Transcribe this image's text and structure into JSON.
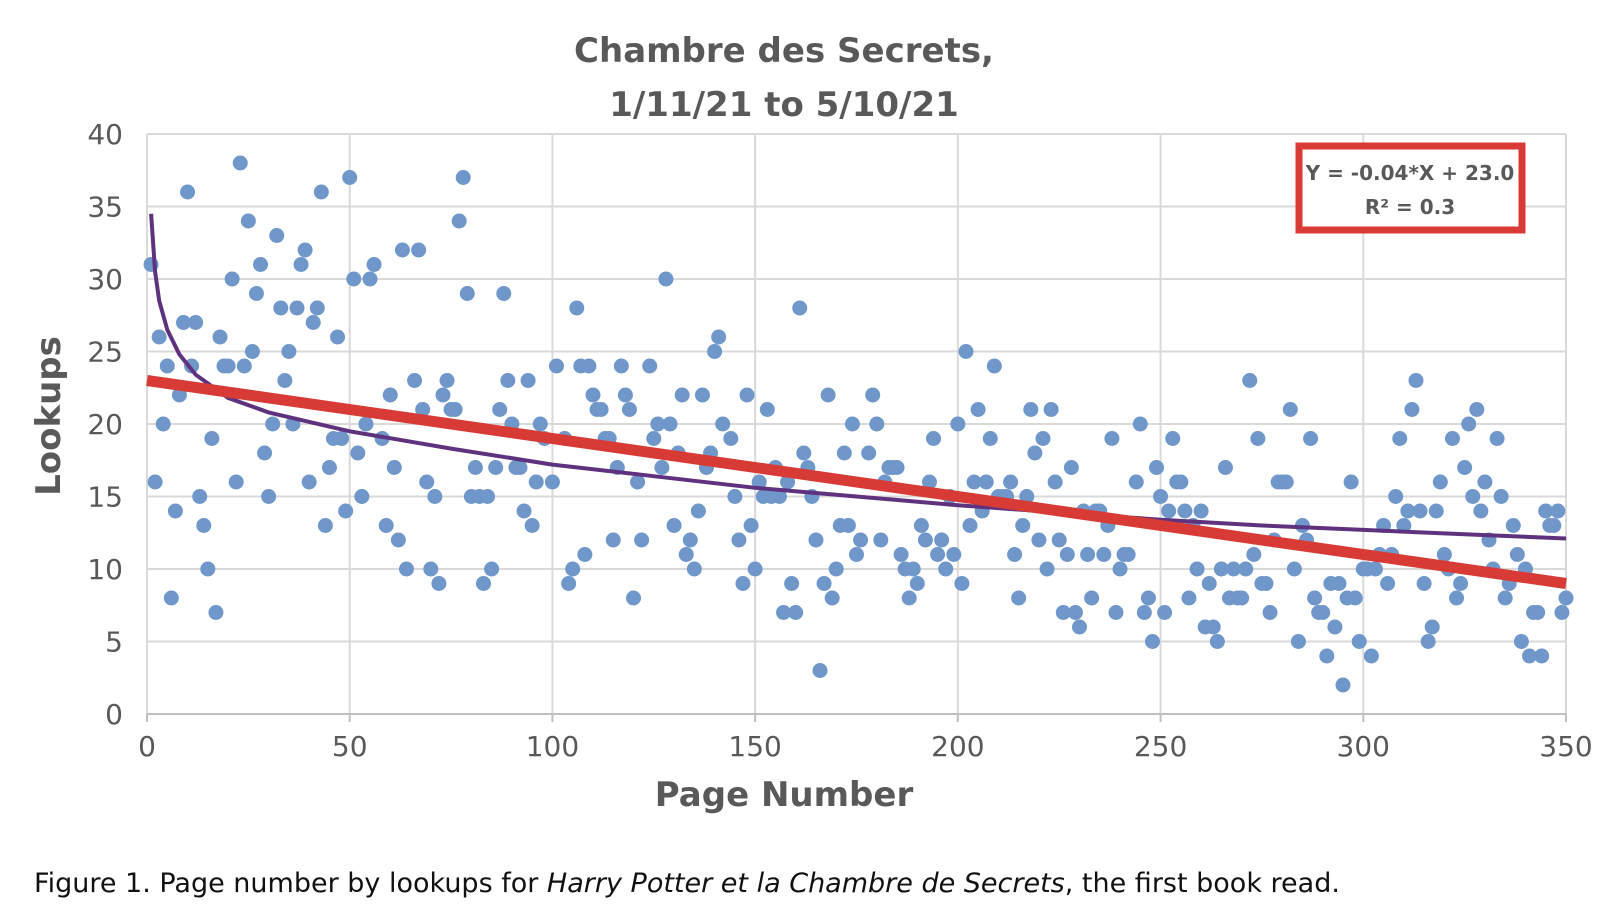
{
  "chart_data": {
    "type": "scatter",
    "title": [
      "Chambre des Secrets,",
      "1/11/21 to 5/10/21"
    ],
    "xlabel": "Page Number",
    "ylabel": "Lookups",
    "xlim": [
      0,
      350
    ],
    "ylim": [
      0,
      40
    ],
    "xticks": [
      0,
      50,
      100,
      150,
      200,
      250,
      300,
      350
    ],
    "yticks": [
      0,
      5,
      10,
      15,
      20,
      25,
      30,
      35,
      40
    ],
    "grid": true,
    "points_color": "#6f97c9",
    "linear_fit_color": "#d83b36",
    "log_fit_color": "#5f327f",
    "annotation": {
      "line1": "Y = -0.04*X + 23.0",
      "line2": "R² = 0.3",
      "border_color": "#d83b36"
    },
    "linear_fit": {
      "slope": -0.04,
      "intercept": 23.0
    },
    "log_fit": {
      "points": [
        [
          1,
          34.5
        ],
        [
          2,
          30.5
        ],
        [
          3,
          28.5
        ],
        [
          5,
          26.5
        ],
        [
          8,
          24.8
        ],
        [
          12,
          23.4
        ],
        [
          20,
          21.8
        ],
        [
          30,
          20.8
        ],
        [
          50,
          19.5
        ],
        [
          75,
          18.3
        ],
        [
          100,
          17.2
        ],
        [
          125,
          16.4
        ],
        [
          150,
          15.6
        ],
        [
          175,
          15.0
        ],
        [
          200,
          14.4
        ],
        [
          225,
          13.9
        ],
        [
          250,
          13.4
        ],
        [
          275,
          13.0
        ],
        [
          300,
          12.7
        ],
        [
          325,
          12.4
        ],
        [
          350,
          12.1
        ]
      ]
    },
    "points": [
      [
        1,
        31
      ],
      [
        2,
        16
      ],
      [
        3,
        26
      ],
      [
        4,
        20
      ],
      [
        5,
        24
      ],
      [
        6,
        8
      ],
      [
        7,
        14
      ],
      [
        8,
        22
      ],
      [
        9,
        27
      ],
      [
        10,
        36
      ],
      [
        11,
        24
      ],
      [
        12,
        27
      ],
      [
        13,
        15
      ],
      [
        14,
        13
      ],
      [
        15,
        10
      ],
      [
        16,
        19
      ],
      [
        17,
        7
      ],
      [
        18,
        26
      ],
      [
        19,
        24
      ],
      [
        20,
        24
      ],
      [
        21,
        30
      ],
      [
        22,
        16
      ],
      [
        23,
        38
      ],
      [
        24,
        24
      ],
      [
        25,
        34
      ],
      [
        26,
        25
      ],
      [
        27,
        29
      ],
      [
        28,
        31
      ],
      [
        29,
        18
      ],
      [
        30,
        15
      ],
      [
        31,
        20
      ],
      [
        32,
        33
      ],
      [
        33,
        28
      ],
      [
        34,
        23
      ],
      [
        35,
        25
      ],
      [
        36,
        20
      ],
      [
        37,
        28
      ],
      [
        38,
        31
      ],
      [
        39,
        32
      ],
      [
        40,
        16
      ],
      [
        41,
        27
      ],
      [
        42,
        28
      ],
      [
        43,
        36
      ],
      [
        44,
        13
      ],
      [
        45,
        17
      ],
      [
        46,
        19
      ],
      [
        47,
        26
      ],
      [
        48,
        19
      ],
      [
        49,
        14
      ],
      [
        50,
        37
      ],
      [
        51,
        30
      ],
      [
        52,
        18
      ],
      [
        53,
        15
      ],
      [
        54,
        20
      ],
      [
        55,
        30
      ],
      [
        56,
        31
      ],
      [
        58,
        19
      ],
      [
        59,
        13
      ],
      [
        60,
        22
      ],
      [
        61,
        17
      ],
      [
        62,
        12
      ],
      [
        63,
        32
      ],
      [
        64,
        10
      ],
      [
        66,
        23
      ],
      [
        67,
        32
      ],
      [
        68,
        21
      ],
      [
        69,
        16
      ],
      [
        70,
        10
      ],
      [
        71,
        15
      ],
      [
        72,
        9
      ],
      [
        73,
        22
      ],
      [
        74,
        23
      ],
      [
        75,
        21
      ],
      [
        76,
        21
      ],
      [
        77,
        34
      ],
      [
        78,
        37
      ],
      [
        79,
        29
      ],
      [
        80,
        15
      ],
      [
        81,
        17
      ],
      [
        82,
        15
      ],
      [
        83,
        9
      ],
      [
        84,
        15
      ],
      [
        85,
        10
      ],
      [
        86,
        17
      ],
      [
        87,
        21
      ],
      [
        88,
        29
      ],
      [
        89,
        23
      ],
      [
        90,
        20
      ],
      [
        91,
        17
      ],
      [
        92,
        17
      ],
      [
        93,
        14
      ],
      [
        94,
        23
      ],
      [
        95,
        13
      ],
      [
        96,
        16
      ],
      [
        97,
        20
      ],
      [
        98,
        19
      ],
      [
        100,
        16
      ],
      [
        101,
        24
      ],
      [
        103,
        19
      ],
      [
        104,
        9
      ],
      [
        105,
        10
      ],
      [
        106,
        28
      ],
      [
        107,
        24
      ],
      [
        108,
        11
      ],
      [
        109,
        24
      ],
      [
        110,
        22
      ],
      [
        111,
        21
      ],
      [
        112,
        21
      ],
      [
        113,
        19
      ],
      [
        114,
        19
      ],
      [
        115,
        12
      ],
      [
        116,
        17
      ],
      [
        117,
        24
      ],
      [
        118,
        22
      ],
      [
        119,
        21
      ],
      [
        120,
        8
      ],
      [
        121,
        16
      ],
      [
        122,
        12
      ],
      [
        124,
        24
      ],
      [
        125,
        19
      ],
      [
        126,
        20
      ],
      [
        127,
        17
      ],
      [
        128,
        30
      ],
      [
        129,
        20
      ],
      [
        130,
        13
      ],
      [
        131,
        18
      ],
      [
        132,
        22
      ],
      [
        133,
        11
      ],
      [
        134,
        12
      ],
      [
        135,
        10
      ],
      [
        136,
        14
      ],
      [
        137,
        22
      ],
      [
        138,
        17
      ],
      [
        139,
        18
      ],
      [
        140,
        25
      ],
      [
        141,
        26
      ],
      [
        142,
        20
      ],
      [
        144,
        19
      ],
      [
        145,
        15
      ],
      [
        146,
        12
      ],
      [
        147,
        9
      ],
      [
        148,
        22
      ],
      [
        149,
        13
      ],
      [
        150,
        10
      ],
      [
        151,
        16
      ],
      [
        152,
        15
      ],
      [
        153,
        21
      ],
      [
        154,
        15
      ],
      [
        155,
        17
      ],
      [
        156,
        15
      ],
      [
        157,
        7
      ],
      [
        158,
        16
      ],
      [
        159,
        9
      ],
      [
        160,
        7
      ],
      [
        161,
        28
      ],
      [
        162,
        18
      ],
      [
        163,
        17
      ],
      [
        164,
        15
      ],
      [
        165,
        12
      ],
      [
        166,
        3
      ],
      [
        167,
        9
      ],
      [
        168,
        22
      ],
      [
        169,
        8
      ],
      [
        170,
        10
      ],
      [
        171,
        13
      ],
      [
        172,
        18
      ],
      [
        173,
        13
      ],
      [
        174,
        20
      ],
      [
        175,
        11
      ],
      [
        176,
        12
      ],
      [
        178,
        18
      ],
      [
        179,
        22
      ],
      [
        180,
        20
      ],
      [
        181,
        12
      ],
      [
        182,
        16
      ],
      [
        183,
        17
      ],
      [
        184,
        17
      ],
      [
        185,
        17
      ],
      [
        186,
        11
      ],
      [
        187,
        10
      ],
      [
        188,
        8
      ],
      [
        189,
        10
      ],
      [
        190,
        9
      ],
      [
        191,
        13
      ],
      [
        192,
        12
      ],
      [
        193,
        16
      ],
      [
        194,
        19
      ],
      [
        195,
        11
      ],
      [
        196,
        12
      ],
      [
        197,
        10
      ],
      [
        198,
        15
      ],
      [
        199,
        11
      ],
      [
        200,
        20
      ],
      [
        201,
        9
      ],
      [
        202,
        25
      ],
      [
        203,
        13
      ],
      [
        204,
        16
      ],
      [
        205,
        21
      ],
      [
        206,
        14
      ],
      [
        207,
        16
      ],
      [
        208,
        19
      ],
      [
        209,
        24
      ],
      [
        210,
        15
      ],
      [
        211,
        15
      ],
      [
        212,
        15
      ],
      [
        213,
        16
      ],
      [
        214,
        11
      ],
      [
        215,
        8
      ],
      [
        216,
        13
      ],
      [
        217,
        15
      ],
      [
        218,
        21
      ],
      [
        219,
        18
      ],
      [
        220,
        12
      ],
      [
        221,
        19
      ],
      [
        222,
        10
      ],
      [
        223,
        21
      ],
      [
        224,
        16
      ],
      [
        225,
        12
      ],
      [
        226,
        7
      ],
      [
        227,
        11
      ],
      [
        228,
        17
      ],
      [
        229,
        7
      ],
      [
        230,
        6
      ],
      [
        231,
        14
      ],
      [
        232,
        11
      ],
      [
        233,
        8
      ],
      [
        234,
        14
      ],
      [
        235,
        14
      ],
      [
        236,
        11
      ],
      [
        237,
        13
      ],
      [
        238,
        19
      ],
      [
        239,
        7
      ],
      [
        240,
        10
      ],
      [
        241,
        11
      ],
      [
        242,
        11
      ],
      [
        244,
        16
      ],
      [
        245,
        20
      ],
      [
        246,
        7
      ],
      [
        247,
        8
      ],
      [
        248,
        5
      ],
      [
        249,
        17
      ],
      [
        250,
        15
      ],
      [
        251,
        7
      ],
      [
        252,
        14
      ],
      [
        253,
        19
      ],
      [
        254,
        16
      ],
      [
        255,
        16
      ],
      [
        256,
        14
      ],
      [
        257,
        8
      ],
      [
        258,
        13
      ],
      [
        259,
        10
      ],
      [
        260,
        14
      ],
      [
        261,
        6
      ],
      [
        262,
        9
      ],
      [
        263,
        6
      ],
      [
        264,
        5
      ],
      [
        265,
        10
      ],
      [
        266,
        17
      ],
      [
        267,
        8
      ],
      [
        268,
        10
      ],
      [
        269,
        8
      ],
      [
        270,
        8
      ],
      [
        271,
        10
      ],
      [
        272,
        23
      ],
      [
        273,
        11
      ],
      [
        274,
        19
      ],
      [
        275,
        9
      ],
      [
        276,
        9
      ],
      [
        277,
        7
      ],
      [
        278,
        12
      ],
      [
        279,
        16
      ],
      [
        280,
        16
      ],
      [
        281,
        16
      ],
      [
        282,
        21
      ],
      [
        283,
        10
      ],
      [
        284,
        5
      ],
      [
        285,
        13
      ],
      [
        286,
        12
      ],
      [
        287,
        19
      ],
      [
        288,
        8
      ],
      [
        289,
        7
      ],
      [
        290,
        7
      ],
      [
        291,
        4
      ],
      [
        292,
        9
      ],
      [
        293,
        6
      ],
      [
        294,
        9
      ],
      [
        295,
        2
      ],
      [
        296,
        8
      ],
      [
        297,
        16
      ],
      [
        298,
        8
      ],
      [
        299,
        5
      ],
      [
        300,
        10
      ],
      [
        301,
        10
      ],
      [
        302,
        4
      ],
      [
        303,
        10
      ],
      [
        304,
        11
      ],
      [
        305,
        13
      ],
      [
        306,
        9
      ],
      [
        307,
        11
      ],
      [
        308,
        15
      ],
      [
        309,
        19
      ],
      [
        310,
        13
      ],
      [
        311,
        14
      ],
      [
        312,
        21
      ],
      [
        313,
        23
      ],
      [
        314,
        14
      ],
      [
        315,
        9
      ],
      [
        316,
        5
      ],
      [
        317,
        6
      ],
      [
        318,
        14
      ],
      [
        319,
        16
      ],
      [
        320,
        11
      ],
      [
        321,
        10
      ],
      [
        322,
        19
      ],
      [
        323,
        8
      ],
      [
        324,
        9
      ],
      [
        325,
        17
      ],
      [
        326,
        20
      ],
      [
        327,
        15
      ],
      [
        328,
        21
      ],
      [
        329,
        14
      ],
      [
        330,
        16
      ],
      [
        331,
        12
      ],
      [
        332,
        10
      ],
      [
        333,
        19
      ],
      [
        334,
        15
      ],
      [
        335,
        8
      ],
      [
        336,
        9
      ],
      [
        337,
        13
      ],
      [
        338,
        11
      ],
      [
        339,
        5
      ],
      [
        340,
        10
      ],
      [
        341,
        4
      ],
      [
        342,
        7
      ],
      [
        343,
        7
      ],
      [
        344,
        4
      ],
      [
        345,
        14
      ],
      [
        346,
        13
      ],
      [
        347,
        13
      ],
      [
        348,
        14
      ],
      [
        349,
        7
      ],
      [
        350,
        8
      ]
    ]
  },
  "caption": {
    "prefix": "Figure 1. Page number by lookups for ",
    "italic": "Harry Potter et la Chambre de Secrets",
    "suffix": ", the first book read."
  }
}
